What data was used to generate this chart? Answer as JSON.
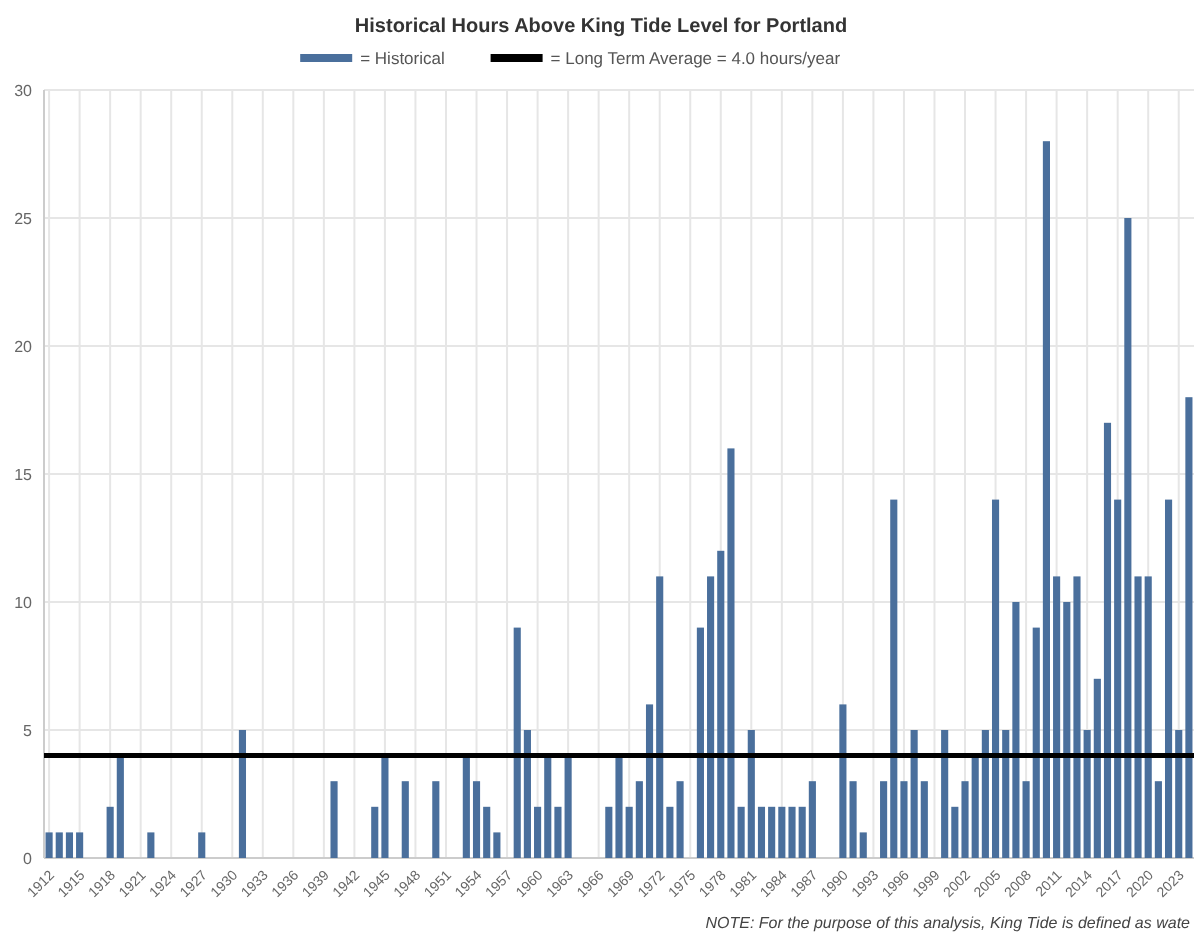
{
  "chart_data": {
    "type": "bar",
    "title": "Historical Hours Above King Tide Level for Portland",
    "x": [
      1912,
      1913,
      1914,
      1915,
      1916,
      1917,
      1918,
      1919,
      1920,
      1921,
      1922,
      1923,
      1924,
      1925,
      1926,
      1927,
      1928,
      1929,
      1930,
      1931,
      1932,
      1933,
      1934,
      1935,
      1936,
      1937,
      1938,
      1939,
      1940,
      1941,
      1942,
      1943,
      1944,
      1945,
      1946,
      1947,
      1948,
      1949,
      1950,
      1951,
      1952,
      1953,
      1954,
      1955,
      1956,
      1957,
      1958,
      1959,
      1960,
      1961,
      1962,
      1963,
      1964,
      1965,
      1966,
      1967,
      1968,
      1969,
      1970,
      1971,
      1972,
      1973,
      1974,
      1975,
      1976,
      1977,
      1978,
      1979,
      1980,
      1981,
      1982,
      1983,
      1984,
      1985,
      1986,
      1987,
      1988,
      1989,
      1990,
      1991,
      1992,
      1993,
      1994,
      1995,
      1996,
      1997,
      1998,
      1999,
      2000,
      2001,
      2002,
      2003,
      2004,
      2005,
      2006,
      2007,
      2008,
      2009,
      2010,
      2011,
      2012,
      2013,
      2014,
      2015,
      2016,
      2017,
      2018,
      2019,
      2020,
      2021,
      2022,
      2023,
      2024
    ],
    "series": [
      {
        "name": "= Historical",
        "color": "#4a6f9c",
        "values": [
          1,
          1,
          1,
          1,
          0,
          0,
          2,
          4,
          0,
          0,
          1,
          0,
          0,
          0,
          0,
          1,
          0,
          0,
          0,
          5,
          0,
          0,
          0,
          0,
          0,
          0,
          0,
          0,
          3,
          0,
          0,
          0,
          2,
          4,
          0,
          3,
          0,
          0,
          3,
          0,
          0,
          4,
          3,
          2,
          1,
          0,
          9,
          5,
          2,
          4,
          2,
          4,
          0,
          0,
          0,
          2,
          4,
          2,
          3,
          6,
          11,
          2,
          3,
          0,
          9,
          11,
          12,
          16,
          2,
          5,
          2,
          2,
          2,
          2,
          2,
          3,
          0,
          0,
          6,
          3,
          1,
          0,
          3,
          14,
          3,
          5,
          3,
          0,
          5,
          2,
          3,
          4,
          5,
          14,
          5,
          10,
          3,
          9,
          28,
          11,
          10,
          11,
          5,
          7,
          17,
          14,
          25,
          11,
          11,
          3,
          14,
          5,
          18
        ]
      }
    ],
    "xlim": [
      1911.5,
      2024.5
    ],
    "xticks": [
      1912,
      1915,
      1918,
      1921,
      1924,
      1927,
      1930,
      1933,
      1936,
      1939,
      1942,
      1945,
      1948,
      1951,
      1954,
      1957,
      1960,
      1963,
      1966,
      1969,
      1972,
      1975,
      1978,
      1981,
      1984,
      1987,
      1990,
      1993,
      1996,
      1999,
      2002,
      2005,
      2008,
      2011,
      2014,
      2017,
      2020,
      2023
    ],
    "ylim": [
      0,
      30
    ],
    "yticks": [
      0,
      5,
      10,
      15,
      20,
      25,
      30
    ],
    "grid": true,
    "legend": "top",
    "ref_lines": [
      {
        "axis": "y",
        "value": 4,
        "label": "= Long Term Average = 4.0 hours/year",
        "color": "#000000"
      }
    ],
    "annotations": [
      "NOTE: For the purpose of this analysis, King Tide is defined as wate"
    ]
  }
}
